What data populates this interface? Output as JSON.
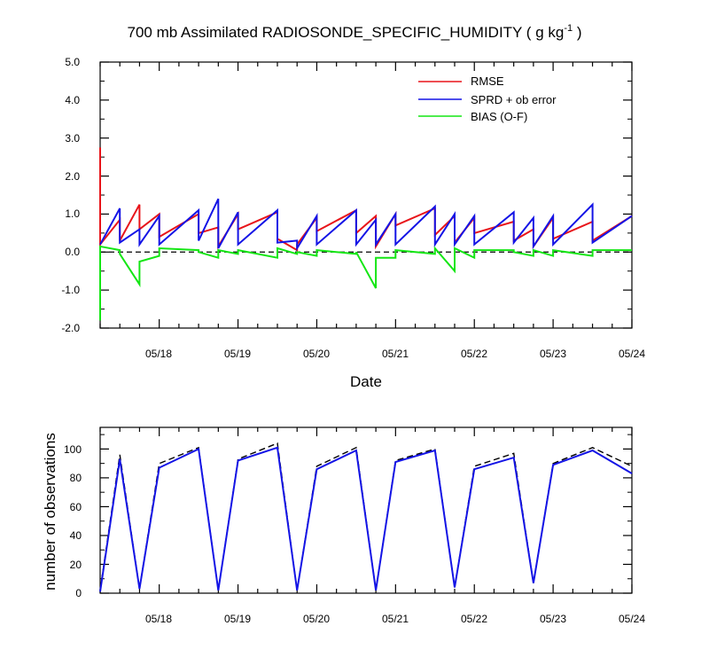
{
  "top_chart": {
    "title": "700 mb Assimilated RADIOSONDE_SPECIFIC_HUMIDITY ( g kg",
    "title_superscript": "-1",
    "title_suffix": " )",
    "xlabel": "Date",
    "ylabel": "",
    "y_tick_labels": [
      "5.0",
      "4.0",
      "3.0",
      "2.0",
      "1.0",
      "0.0",
      "-1.0",
      "-2.0"
    ]
  },
  "bottom_chart": {
    "title": "",
    "xlabel": "",
    "ylabel": "number of observations",
    "y_tick_labels": [
      "100",
      "80",
      "60",
      "40",
      "20",
      "0"
    ]
  },
  "date_tick_labels": [
    "05/18",
    "05/19",
    "05/20",
    "05/21",
    "05/22",
    "05/23",
    "05/24"
  ],
  "legend": [
    {
      "label": "RMSE",
      "color": "#e8141a"
    },
    {
      "label": "SPRD + ob error",
      "color": "#1414e6"
    },
    {
      "label": "BIAS (O-F)",
      "color": "#14e614"
    }
  ],
  "chart_data": [
    {
      "type": "line",
      "title": "700 mb Assimilated RADIOSONDE_SPECIFIC_HUMIDITY ( g kg-1 )",
      "xlabel": "Date",
      "ylabel": "",
      "x_unit": "days since 05/17 00Z",
      "xlim": [
        0.25,
        7.0
      ],
      "ylim": [
        -2.0,
        5.0
      ],
      "x_ticks": [
        1,
        2,
        3,
        4,
        5,
        6,
        7
      ],
      "reference_line": {
        "y": 0.0,
        "style": "dashed",
        "color": "#000000"
      },
      "legend_position": "top-right",
      "series": [
        {
          "name": "RMSE",
          "color": "#e8141a",
          "points": [
            [
              0.25,
              2.75
            ],
            [
              0.25,
              0.2
            ],
            [
              0.5,
              0.85
            ],
            [
              0.5,
              0.3
            ],
            [
              0.75,
              1.25
            ],
            [
              0.75,
              0.6
            ],
            [
              1.0,
              1.0
            ],
            [
              1.0,
              0.4
            ],
            [
              1.5,
              1.0
            ],
            [
              1.5,
              0.5
            ],
            [
              1.75,
              0.65
            ],
            [
              1.75,
              0.15
            ],
            [
              2.0,
              1.0
            ],
            [
              2.0,
              0.6
            ],
            [
              2.5,
              1.05
            ],
            [
              2.5,
              0.35
            ],
            [
              2.75,
              0.05
            ],
            [
              2.75,
              0.2
            ],
            [
              3.0,
              0.9
            ],
            [
              3.0,
              0.55
            ],
            [
              3.5,
              1.1
            ],
            [
              3.5,
              0.5
            ],
            [
              3.75,
              0.95
            ],
            [
              3.75,
              0.15
            ],
            [
              4.0,
              1.0
            ],
            [
              4.0,
              0.7
            ],
            [
              4.5,
              1.15
            ],
            [
              4.5,
              0.45
            ],
            [
              4.75,
              0.95
            ],
            [
              4.75,
              0.25
            ],
            [
              5.0,
              0.9
            ],
            [
              5.0,
              0.5
            ],
            [
              5.5,
              0.8
            ],
            [
              5.5,
              0.3
            ],
            [
              5.75,
              0.6
            ],
            [
              5.75,
              0.15
            ],
            [
              6.0,
              0.9
            ],
            [
              6.0,
              0.35
            ],
            [
              6.5,
              0.8
            ],
            [
              6.5,
              0.3
            ],
            [
              7.0,
              0.95
            ]
          ]
        },
        {
          "name": "SPRD + ob error",
          "color": "#1414e6",
          "points": [
            [
              0.25,
              0.2
            ],
            [
              0.5,
              1.15
            ],
            [
              0.5,
              0.25
            ],
            [
              0.75,
              0.6
            ],
            [
              0.75,
              0.2
            ],
            [
              1.0,
              0.95
            ],
            [
              1.0,
              0.2
            ],
            [
              1.5,
              1.1
            ],
            [
              1.5,
              0.3
            ],
            [
              1.75,
              1.4
            ],
            [
              1.75,
              0.1
            ],
            [
              2.0,
              1.05
            ],
            [
              2.0,
              0.2
            ],
            [
              2.5,
              1.1
            ],
            [
              2.5,
              0.25
            ],
            [
              2.75,
              0.3
            ],
            [
              2.75,
              0.1
            ],
            [
              3.0,
              0.95
            ],
            [
              3.0,
              0.2
            ],
            [
              3.5,
              1.1
            ],
            [
              3.5,
              0.2
            ],
            [
              3.75,
              0.85
            ],
            [
              3.75,
              0.2
            ],
            [
              4.0,
              1.0
            ],
            [
              4.0,
              0.2
            ],
            [
              4.5,
              1.2
            ],
            [
              4.5,
              0.2
            ],
            [
              4.75,
              1.0
            ],
            [
              4.75,
              0.2
            ],
            [
              5.0,
              0.95
            ],
            [
              5.0,
              0.2
            ],
            [
              5.5,
              1.05
            ],
            [
              5.5,
              0.25
            ],
            [
              5.75,
              0.9
            ],
            [
              5.75,
              0.15
            ],
            [
              6.0,
              0.95
            ],
            [
              6.0,
              0.2
            ],
            [
              6.5,
              1.25
            ],
            [
              6.5,
              0.25
            ],
            [
              7.0,
              0.95
            ]
          ]
        },
        {
          "name": "BIAS (O-F)",
          "color": "#14e614",
          "points": [
            [
              0.25,
              -1.8
            ],
            [
              0.25,
              0.15
            ],
            [
              0.5,
              0.05
            ],
            [
              0.5,
              -0.05
            ],
            [
              0.75,
              -0.85
            ],
            [
              0.75,
              -0.25
            ],
            [
              1.0,
              -0.1
            ],
            [
              1.0,
              0.1
            ],
            [
              1.5,
              0.05
            ],
            [
              1.5,
              0.0
            ],
            [
              1.75,
              -0.15
            ],
            [
              1.75,
              0.05
            ],
            [
              2.0,
              -0.05
            ],
            [
              2.0,
              0.05
            ],
            [
              2.5,
              -0.15
            ],
            [
              2.5,
              0.1
            ],
            [
              2.75,
              -0.05
            ],
            [
              2.75,
              0.0
            ],
            [
              3.0,
              -0.1
            ],
            [
              3.0,
              0.05
            ],
            [
              3.5,
              -0.05
            ],
            [
              3.5,
              0.0
            ],
            [
              3.75,
              -0.95
            ],
            [
              3.75,
              -0.15
            ],
            [
              4.0,
              -0.15
            ],
            [
              4.0,
              0.05
            ],
            [
              4.5,
              -0.05
            ],
            [
              4.5,
              0.1
            ],
            [
              4.75,
              -0.5
            ],
            [
              4.75,
              0.1
            ],
            [
              5.0,
              -0.15
            ],
            [
              5.0,
              0.05
            ],
            [
              5.5,
              0.05
            ],
            [
              5.5,
              0.0
            ],
            [
              5.75,
              -0.1
            ],
            [
              5.75,
              0.05
            ],
            [
              6.0,
              -0.1
            ],
            [
              6.0,
              0.05
            ],
            [
              6.5,
              -0.1
            ],
            [
              6.5,
              0.05
            ],
            [
              7.0,
              0.05
            ]
          ]
        }
      ]
    },
    {
      "type": "line",
      "title": "",
      "xlabel": "",
      "ylabel": "number of observations",
      "x_unit": "days since 05/17 00Z",
      "xlim": [
        0.25,
        7.0
      ],
      "ylim": [
        0,
        115
      ],
      "x_ticks": [
        1,
        2,
        3,
        4,
        5,
        6,
        7
      ],
      "series": [
        {
          "name": "",
          "color": "#000000",
          "style": "dashed",
          "points": [
            [
              0.25,
              2
            ],
            [
              0.5,
              96
            ],
            [
              0.75,
              3
            ],
            [
              1.0,
              90
            ],
            [
              1.5,
              101
            ],
            [
              1.75,
              2
            ],
            [
              2.0,
              93
            ],
            [
              2.5,
              104
            ],
            [
              2.75,
              2
            ],
            [
              3.0,
              88
            ],
            [
              3.5,
              101
            ],
            [
              3.75,
              2
            ],
            [
              4.0,
              92
            ],
            [
              4.5,
              100
            ],
            [
              4.75,
              4
            ],
            [
              5.0,
              88
            ],
            [
              5.5,
              97
            ],
            [
              5.75,
              7
            ],
            [
              6.0,
              90
            ],
            [
              6.5,
              101
            ],
            [
              7.0,
              88
            ]
          ]
        },
        {
          "name": "",
          "color": "#1414e6",
          "style": "solid",
          "points": [
            [
              0.25,
              1
            ],
            [
              0.5,
              93
            ],
            [
              0.75,
              3
            ],
            [
              1.0,
              87
            ],
            [
              1.5,
              100
            ],
            [
              1.75,
              2
            ],
            [
              2.0,
              92
            ],
            [
              2.5,
              101
            ],
            [
              2.75,
              2
            ],
            [
              3.0,
              86
            ],
            [
              3.5,
              99
            ],
            [
              3.75,
              2
            ],
            [
              4.0,
              91
            ],
            [
              4.5,
              99
            ],
            [
              4.75,
              4
            ],
            [
              5.0,
              86
            ],
            [
              5.5,
              94
            ],
            [
              5.75,
              7
            ],
            [
              6.0,
              89
            ],
            [
              6.5,
              99
            ],
            [
              7.0,
              83
            ]
          ]
        }
      ]
    }
  ]
}
